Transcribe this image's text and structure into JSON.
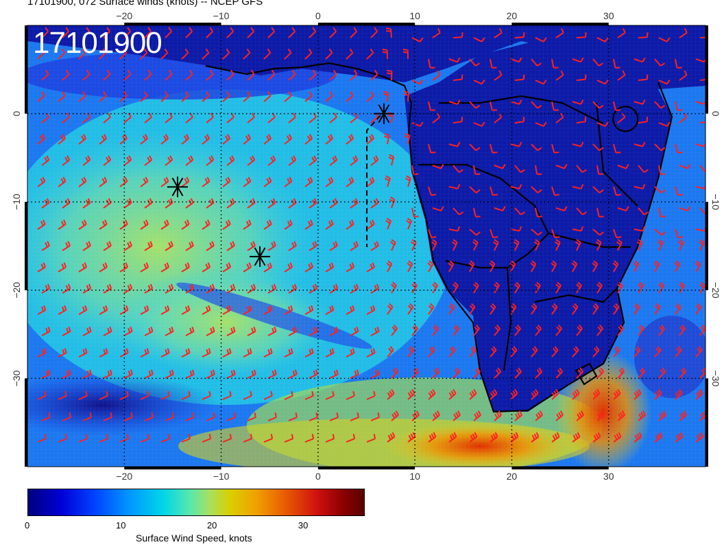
{
  "header": {
    "title": "17101900, 072 Surface winds (knots) -- NCEP GFS",
    "stamp": "17101900"
  },
  "map": {
    "lon_ticks": [
      "−20",
      "−10",
      "0",
      "10",
      "20",
      "30"
    ],
    "lat_ticks": [
      "0",
      "−10",
      "−20",
      "−30"
    ],
    "lon_values": [
      -20,
      -10,
      0,
      10,
      20,
      30
    ],
    "lat_values": [
      0,
      -10,
      -20,
      -30
    ],
    "lon_range": [
      -30,
      40
    ],
    "lat_range": [
      -40,
      10
    ],
    "barb_color": "#ff2020",
    "markers": [
      {
        "name": "star-marker",
        "lon": -14.5,
        "lat": -8.3
      },
      {
        "name": "star-marker",
        "lon": -6.0,
        "lat": -16.2
      },
      {
        "name": "star-marker",
        "lon": 6.8,
        "lat": 0.0
      }
    ]
  },
  "colorbar": {
    "title": "Surface Wind Speed, knots",
    "labels": [
      "0",
      "10",
      "20",
      "30"
    ],
    "min": 0,
    "max": 37
  }
}
